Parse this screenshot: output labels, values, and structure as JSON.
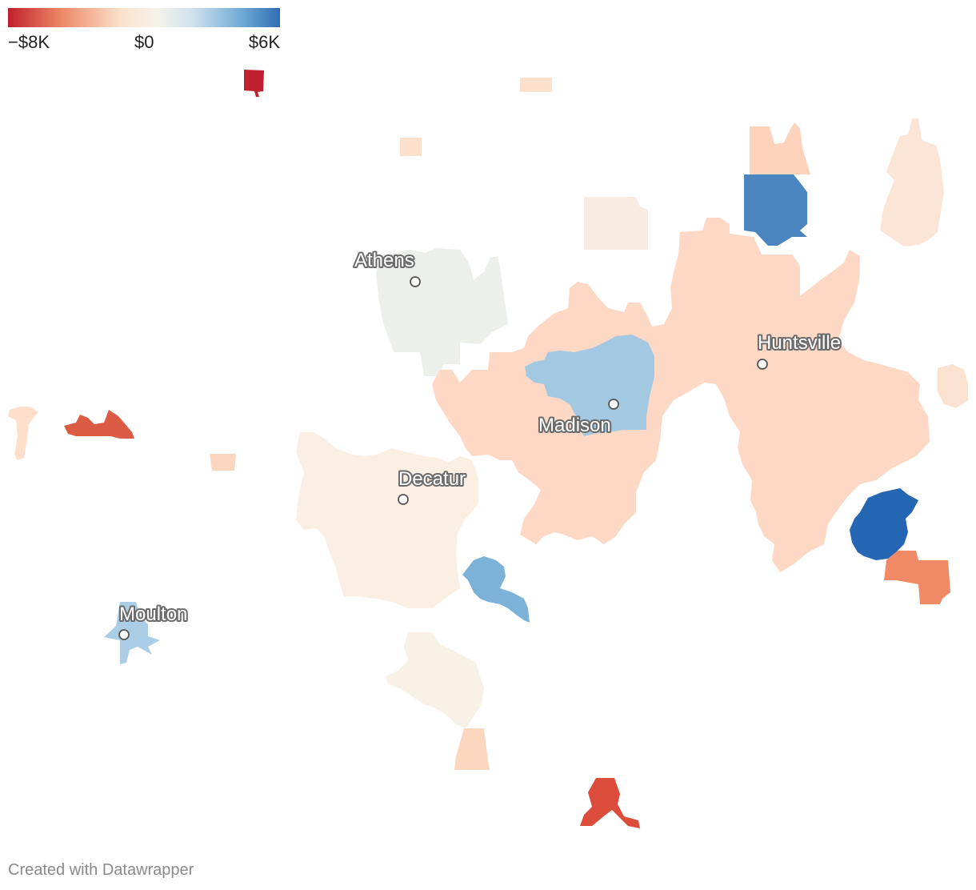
{
  "legend": {
    "min_label": "−$8K",
    "mid_label": "$0",
    "max_label": "$6K",
    "color_stops": [
      "#c0202d",
      "#ee8a67",
      "#fbe3cf",
      "#f5f2ea",
      "#cfe1ee",
      "#74add6",
      "#2f6eb3"
    ]
  },
  "cities": [
    {
      "name": "Athens"
    },
    {
      "name": "Huntsville"
    },
    {
      "name": "Madison"
    },
    {
      "name": "Decatur"
    },
    {
      "name": "Moulton"
    }
  ],
  "footer": {
    "credit": "Created with Datawrapper"
  }
}
